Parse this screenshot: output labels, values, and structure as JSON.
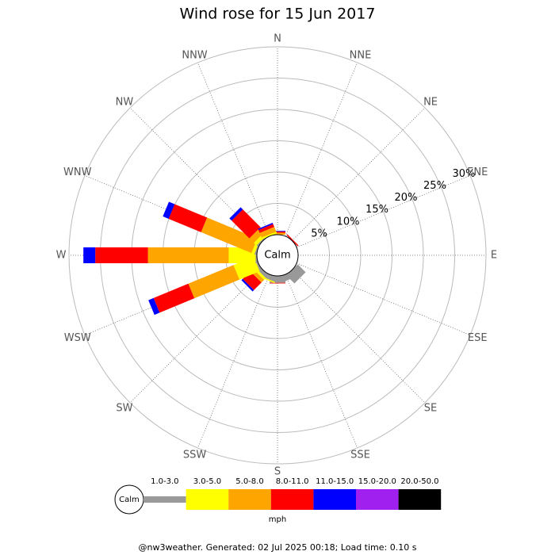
{
  "chart_data": {
    "type": "windrose",
    "title": "Wind rose for 15 Jun 2017",
    "categories": [
      "N",
      "NNE",
      "NE",
      "ENE",
      "E",
      "ESE",
      "SE",
      "SSE",
      "S",
      "SSW",
      "SW",
      "WSW",
      "W",
      "WNW",
      "NW",
      "NNW"
    ],
    "calm_label": "Calm",
    "unit_label": "mph",
    "footer": "@nw3weather. Generated: 02 Jul 2025 00:18; Load time: 0.10 s",
    "rlim": [
      0,
      30
    ],
    "rticks": [
      {
        "value": 5,
        "label": "5%"
      },
      {
        "value": 10,
        "label": "10%"
      },
      {
        "value": 15,
        "label": "15%"
      },
      {
        "value": 20,
        "label": "20%"
      },
      {
        "value": 25,
        "label": "25%"
      },
      {
        "value": 30,
        "label": "30%"
      }
    ],
    "series": [
      {
        "name": "1.0-3.0",
        "color": "#999999",
        "values": [
          0,
          0,
          0,
          0,
          0,
          0,
          1.8,
          1.0,
          1.1,
          0.8,
          0.6,
          0.3,
          0.2,
          0.2,
          0.2,
          0
        ]
      },
      {
        "name": "3.0-5.0",
        "color": "#ffff00",
        "values": [
          0,
          0,
          0,
          0,
          0,
          0,
          0,
          0,
          0,
          0.2,
          0.4,
          3.5,
          4.3,
          0.5,
          0.6,
          0.3
        ]
      },
      {
        "name": "5.0-8.0",
        "color": "#ffa500",
        "values": [
          0.3,
          0,
          0,
          0,
          0,
          0,
          0,
          0,
          0,
          0,
          0.6,
          7.8,
          12.9,
          8.7,
          1.0,
          0.8
        ]
      },
      {
        "name": "8.0-11.0",
        "color": "#ff0000",
        "values": [
          0.2,
          0,
          0.2,
          0,
          0,
          0,
          0,
          0,
          0.1,
          0,
          1.7,
          6.0,
          8.4,
          5.6,
          4.0,
          0.5
        ]
      },
      {
        "name": "11.0-15.0",
        "color": "#0000ff",
        "values": [
          0.1,
          0,
          0,
          0,
          0,
          0,
          0,
          0,
          0,
          0,
          0.3,
          0.9,
          1.9,
          1.0,
          0.5,
          0.2
        ]
      },
      {
        "name": "15.0-20.0",
        "color": "#a020f0",
        "values": [
          0,
          0,
          0,
          0,
          0,
          0,
          0,
          0,
          0,
          0,
          0,
          0,
          0,
          0,
          0,
          0
        ]
      },
      {
        "name": "20.0-50.0",
        "color": "#000000",
        "values": [
          0,
          0,
          0,
          0,
          0,
          0,
          0,
          0,
          0,
          0,
          0,
          0,
          0,
          0,
          0,
          0
        ]
      }
    ]
  }
}
